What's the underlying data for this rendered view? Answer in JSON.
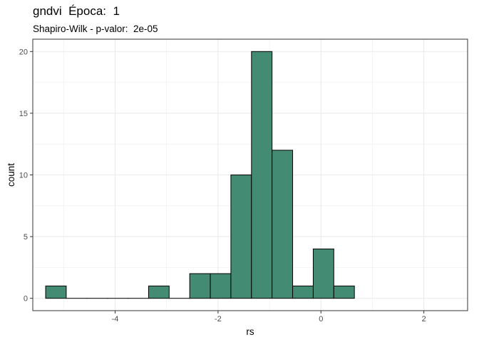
{
  "chart_data": {
    "type": "bar",
    "title": "gndvi  Época:  1",
    "subtitle": "Shapiro-Wilk - p-valor:  2e-05",
    "xlabel": "rs",
    "ylabel": "count",
    "xlim": [
      -5.6,
      2.85
    ],
    "ylim": [
      -1,
      21
    ],
    "xticks": [
      -4,
      -2,
      0,
      2
    ],
    "yticks": [
      0,
      5,
      10,
      15,
      20
    ],
    "grid": true,
    "colors": {
      "fill": "#448B74",
      "stroke": "#000000",
      "grid": "#EBEBEB",
      "panel_border": "#333333"
    },
    "bins": [
      {
        "x0": -5.35,
        "x1": -4.95,
        "count": 1
      },
      {
        "x0": -4.95,
        "x1": -4.55,
        "count": 0
      },
      {
        "x0": -4.55,
        "x1": -4.15,
        "count": 0
      },
      {
        "x0": -4.15,
        "x1": -3.75,
        "count": 0
      },
      {
        "x0": -3.75,
        "x1": -3.35,
        "count": 0
      },
      {
        "x0": -3.35,
        "x1": -2.95,
        "count": 1
      },
      {
        "x0": -2.95,
        "x1": -2.55,
        "count": 0
      },
      {
        "x0": -2.55,
        "x1": -2.15,
        "count": 2
      },
      {
        "x0": -2.15,
        "x1": -1.75,
        "count": 2
      },
      {
        "x0": -1.75,
        "x1": -1.35,
        "count": 10
      },
      {
        "x0": -1.35,
        "x1": -0.95,
        "count": 20
      },
      {
        "x0": -0.95,
        "x1": -0.55,
        "count": 12
      },
      {
        "x0": -0.55,
        "x1": -0.15,
        "count": 1
      },
      {
        "x0": -0.15,
        "x1": 0.25,
        "count": 4
      },
      {
        "x0": 0.25,
        "x1": 0.65,
        "count": 1
      }
    ]
  }
}
